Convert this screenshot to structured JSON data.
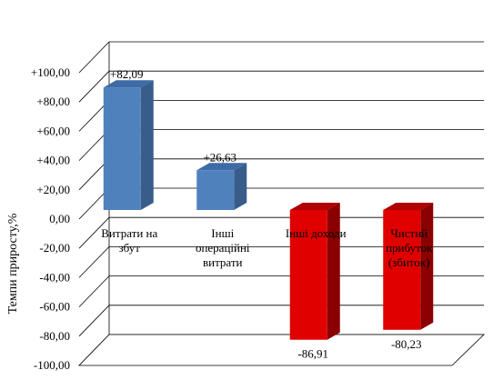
{
  "chart_data": {
    "type": "bar",
    "ylabel": "Темпи приросту,%",
    "ylim": [
      -100,
      100
    ],
    "yticks": [
      "+100,00",
      "+80,00",
      "+60,00",
      "+40,00",
      "+20,00",
      "0,00",
      "-20,00",
      "-40,00",
      "-60,00",
      "-80,00",
      "-100,00"
    ],
    "categories": [
      [
        "Витрати на",
        "збут"
      ],
      [
        "Інші",
        "операційні",
        "витрати"
      ],
      [
        "Інші доходи"
      ],
      [
        "Чистий",
        "прибуток",
        "(збиток)"
      ]
    ],
    "values": [
      82.09,
      26.63,
      -86.91,
      -80.23
    ],
    "value_labels": [
      "+82,09",
      "+26,63",
      "-86,91",
      "-80,23"
    ],
    "colors": {
      "positive": "#4f81bd",
      "positive_side": "#385d8a",
      "positive_top": "#3e6aa6",
      "negative": "#e00000",
      "negative_side": "#8b0000",
      "negative_top": "#b00000"
    },
    "grid": true,
    "legend": "none"
  }
}
